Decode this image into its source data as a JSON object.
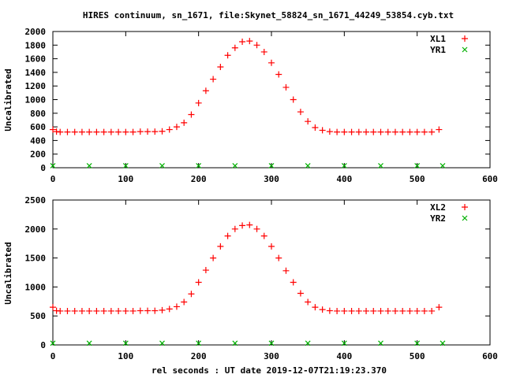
{
  "page": {
    "title": "HIRES continuum, sn_1671, file:Skynet_58824_sn_1671_44249_53854.cyb.txt",
    "xlabel": "rel seconds : UT date 2019-12-07T21:19:23.370"
  },
  "colors": {
    "series_red": "#ff0000",
    "series_green": "#00b000",
    "axis": "#000000",
    "grid": "#c8c8c8"
  },
  "chart_data": [
    {
      "type": "scatter",
      "title": "HIRES continuum, sn_1671, file:Skynet_58824_sn_1671_44249_53854.cyb.txt",
      "xlabel": "",
      "ylabel": "Uncalibrated",
      "xlim": [
        0,
        600
      ],
      "ylim": [
        0,
        2000
      ],
      "x_ticks": [
        0,
        100,
        200,
        300,
        400,
        500,
        600
      ],
      "y_ticks": [
        0,
        200,
        400,
        600,
        800,
        1000,
        1200,
        1400,
        1600,
        1800,
        2000
      ],
      "grid": false,
      "legend": "top-right",
      "series": [
        {
          "name": "XL1",
          "marker": "+",
          "color": "#ff0000",
          "x": [
            0,
            5,
            10,
            20,
            30,
            40,
            50,
            60,
            70,
            80,
            90,
            100,
            110,
            120,
            130,
            140,
            150,
            160,
            170,
            180,
            190,
            200,
            210,
            220,
            230,
            240,
            250,
            260,
            270,
            280,
            290,
            300,
            310,
            320,
            330,
            340,
            350,
            360,
            370,
            380,
            390,
            400,
            410,
            420,
            430,
            440,
            450,
            460,
            470,
            480,
            490,
            500,
            510,
            520,
            530
          ],
          "y": [
            560,
            530,
            525,
            525,
            525,
            525,
            525,
            525,
            525,
            525,
            525,
            525,
            525,
            530,
            530,
            530,
            535,
            560,
            600,
            660,
            780,
            950,
            1130,
            1300,
            1480,
            1650,
            1760,
            1850,
            1860,
            1800,
            1700,
            1540,
            1370,
            1180,
            1000,
            820,
            680,
            590,
            550,
            530,
            525,
            525,
            525,
            525,
            525,
            525,
            525,
            525,
            525,
            525,
            525,
            525,
            525,
            525,
            560
          ]
        },
        {
          "name": "YR1",
          "marker": "x",
          "color": "#00b000",
          "x": [
            0,
            50,
            100,
            150,
            200,
            250,
            300,
            350,
            400,
            450,
            500,
            535
          ],
          "y": [
            30,
            30,
            30,
            30,
            30,
            30,
            30,
            30,
            30,
            30,
            30,
            30
          ]
        }
      ]
    },
    {
      "type": "scatter",
      "xlabel": "rel seconds : UT date 2019-12-07T21:19:23.370",
      "ylabel": "Uncalibrated",
      "xlim": [
        0,
        600
      ],
      "ylim": [
        0,
        2500
      ],
      "x_ticks": [
        0,
        100,
        200,
        300,
        400,
        500,
        600
      ],
      "y_ticks": [
        0,
        500,
        1000,
        1500,
        2000,
        2500
      ],
      "grid": false,
      "legend": "top-right",
      "series": [
        {
          "name": "XL2",
          "marker": "+",
          "color": "#ff0000",
          "x": [
            0,
            5,
            10,
            20,
            30,
            40,
            50,
            60,
            70,
            80,
            90,
            100,
            110,
            120,
            130,
            140,
            150,
            160,
            170,
            180,
            190,
            200,
            210,
            220,
            230,
            240,
            250,
            260,
            270,
            280,
            290,
            300,
            310,
            320,
            330,
            340,
            350,
            360,
            370,
            380,
            390,
            400,
            410,
            420,
            430,
            440,
            450,
            460,
            470,
            480,
            490,
            500,
            510,
            520,
            530
          ],
          "y": [
            650,
            590,
            585,
            585,
            585,
            585,
            585,
            585,
            585,
            585,
            585,
            585,
            585,
            590,
            590,
            590,
            600,
            620,
            660,
            740,
            880,
            1080,
            1290,
            1500,
            1700,
            1880,
            2000,
            2060,
            2070,
            2000,
            1880,
            1700,
            1500,
            1280,
            1080,
            890,
            740,
            650,
            610,
            590,
            585,
            585,
            585,
            585,
            585,
            585,
            585,
            585,
            585,
            585,
            585,
            585,
            585,
            585,
            650
          ]
        },
        {
          "name": "YR2",
          "marker": "x",
          "color": "#00b000",
          "x": [
            0,
            50,
            100,
            150,
            200,
            250,
            300,
            350,
            400,
            450,
            500,
            535
          ],
          "y": [
            30,
            30,
            30,
            30,
            30,
            30,
            30,
            30,
            30,
            30,
            30,
            30
          ]
        }
      ]
    }
  ]
}
